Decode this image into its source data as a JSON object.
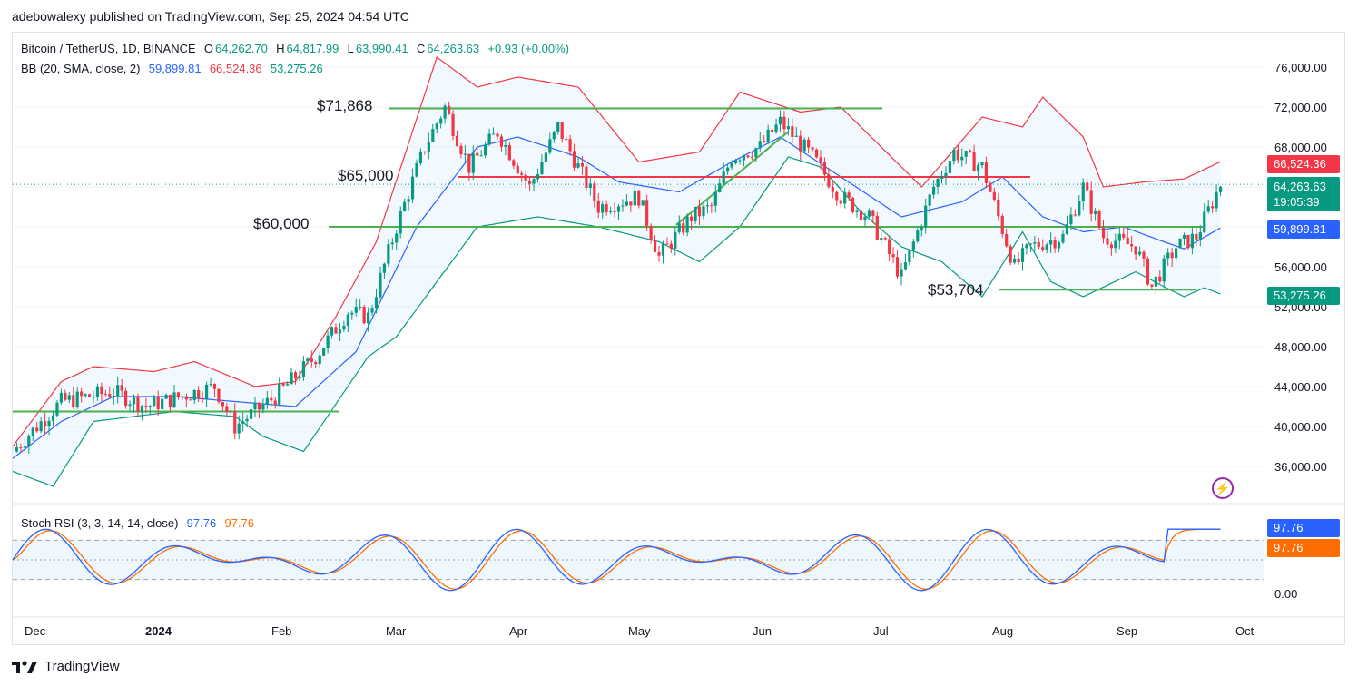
{
  "header": {
    "publisher": "adebowalexy published on TradingView.com, Sep 25, 2024 04:54 UTC"
  },
  "symbol": {
    "name": "Bitcoin / TetherUS, 1D, BINANCE",
    "open_label": "O",
    "open": "64,262.70",
    "high_label": "H",
    "high": "64,817.99",
    "low_label": "L",
    "low": "63,990.41",
    "close_label": "C",
    "close": "64,263.63",
    "change": "+0.93 (+0.00%)"
  },
  "bb": {
    "label": "BB (20, SMA, close, 2)",
    "basis": "59,899.81",
    "upper": "66,524.36",
    "lower": "53,275.26"
  },
  "stoch": {
    "label": "Stoch RSI (3, 3, 14, 14, close)",
    "k": "97.76",
    "d": "97.76"
  },
  "price_tags": {
    "upper": "66,524.36",
    "last": "64,263.63",
    "countdown": "19:05:39",
    "basis": "59,899.81",
    "lower": "53,275.26",
    "stoch_k": "97.76",
    "stoch_d": "97.76"
  },
  "annotations": {
    "a1": "$71,868",
    "a2": "$65,000",
    "a3": "$60,000",
    "a4": "$53,704"
  },
  "y_axis": [
    "76,000.00",
    "72,000.00",
    "68,000.00",
    "56,000.00",
    "52,000.00",
    "48,000.00",
    "44,000.00",
    "40,000.00",
    "36,000.00"
  ],
  "y_axis_stoch": "0.00",
  "x_axis": [
    "Dec",
    "2024",
    "Feb",
    "Mar",
    "Apr",
    "May",
    "Jun",
    "Jul",
    "Aug",
    "Sep",
    "Oct"
  ],
  "footer": {
    "brand": "TradingView"
  },
  "colors": {
    "up": "#089981",
    "down": "#f23645",
    "basis": "#2962ff",
    "upper": "#f23645",
    "lower": "#089981",
    "annot": "#4caf50",
    "stoch_k": "#2962ff",
    "stoch_d": "#ff6d00"
  },
  "chart_data": {
    "type": "candlestick",
    "x": [
      "Dec",
      "2024",
      "Feb",
      "Mar",
      "Apr",
      "May",
      "Jun",
      "Jul",
      "Aug",
      "Sep",
      "Oct"
    ],
    "anchors_price": [
      {
        "d": 0,
        "p": 37500
      },
      {
        "d": 12,
        "p": 42500
      },
      {
        "d": 25,
        "p": 43500
      },
      {
        "d": 33,
        "p": 42000
      },
      {
        "d": 50,
        "p": 44000
      },
      {
        "d": 55,
        "p": 40000
      },
      {
        "d": 65,
        "p": 43000
      },
      {
        "d": 75,
        "p": 47000
      },
      {
        "d": 83,
        "p": 51500
      },
      {
        "d": 88,
        "p": 51000
      },
      {
        "d": 95,
        "p": 60000
      },
      {
        "d": 102,
        "p": 68000
      },
      {
        "d": 107,
        "p": 72000
      },
      {
        "d": 113,
        "p": 66000
      },
      {
        "d": 120,
        "p": 69500
      },
      {
        "d": 128,
        "p": 64000
      },
      {
        "d": 135,
        "p": 70000
      },
      {
        "d": 140,
        "p": 66000
      },
      {
        "d": 145,
        "p": 62000
      },
      {
        "d": 155,
        "p": 63000
      },
      {
        "d": 160,
        "p": 57000
      },
      {
        "d": 168,
        "p": 61000
      },
      {
        "d": 173,
        "p": 62000
      },
      {
        "d": 178,
        "p": 67000
      },
      {
        "d": 185,
        "p": 68000
      },
      {
        "d": 190,
        "p": 70500
      },
      {
        "d": 198,
        "p": 67000
      },
      {
        "d": 205,
        "p": 63000
      },
      {
        "d": 212,
        "p": 61000
      },
      {
        "d": 220,
        "p": 55000
      },
      {
        "d": 228,
        "p": 64000
      },
      {
        "d": 233,
        "p": 67500
      },
      {
        "d": 240,
        "p": 66000
      },
      {
        "d": 248,
        "p": 56000
      },
      {
        "d": 252,
        "p": 58000
      },
      {
        "d": 260,
        "p": 59000
      },
      {
        "d": 265,
        "p": 64000
      },
      {
        "d": 270,
        "p": 59000
      },
      {
        "d": 278,
        "p": 58000
      },
      {
        "d": 282,
        "p": 54000
      },
      {
        "d": 288,
        "p": 58000
      },
      {
        "d": 293,
        "p": 59000
      },
      {
        "d": 299,
        "p": 64263
      }
    ],
    "upper_band": [
      {
        "d": 0,
        "p": 38000
      },
      {
        "d": 12,
        "p": 44500
      },
      {
        "d": 20,
        "p": 46000
      },
      {
        "d": 35,
        "p": 45500
      },
      {
        "d": 45,
        "p": 46500
      },
      {
        "d": 60,
        "p": 44000
      },
      {
        "d": 70,
        "p": 44500
      },
      {
        "d": 80,
        "p": 51000
      },
      {
        "d": 90,
        "p": 58500
      },
      {
        "d": 105,
        "p": 77000
      },
      {
        "d": 115,
        "p": 74000
      },
      {
        "d": 125,
        "p": 75000
      },
      {
        "d": 140,
        "p": 74000
      },
      {
        "d": 155,
        "p": 66500
      },
      {
        "d": 170,
        "p": 67500
      },
      {
        "d": 180,
        "p": 73500
      },
      {
        "d": 195,
        "p": 71500
      },
      {
        "d": 205,
        "p": 72000
      },
      {
        "d": 225,
        "p": 64000
      },
      {
        "d": 240,
        "p": 71000
      },
      {
        "d": 250,
        "p": 70000
      },
      {
        "d": 255,
        "p": 73000
      },
      {
        "d": 265,
        "p": 69000
      },
      {
        "d": 270,
        "p": 64000
      },
      {
        "d": 280,
        "p": 64500
      },
      {
        "d": 290,
        "p": 64800
      },
      {
        "d": 299,
        "p": 66524
      }
    ],
    "basis_line": [
      {
        "d": 0,
        "p": 36800
      },
      {
        "d": 12,
        "p": 40500
      },
      {
        "d": 25,
        "p": 43000
      },
      {
        "d": 40,
        "p": 43000
      },
      {
        "d": 55,
        "p": 42500
      },
      {
        "d": 70,
        "p": 42000
      },
      {
        "d": 85,
        "p": 47500
      },
      {
        "d": 100,
        "p": 60000
      },
      {
        "d": 115,
        "p": 68000
      },
      {
        "d": 125,
        "p": 69000
      },
      {
        "d": 140,
        "p": 67000
      },
      {
        "d": 150,
        "p": 64500
      },
      {
        "d": 165,
        "p": 63500
      },
      {
        "d": 178,
        "p": 66500
      },
      {
        "d": 190,
        "p": 69000
      },
      {
        "d": 205,
        "p": 65000
      },
      {
        "d": 220,
        "p": 61000
      },
      {
        "d": 235,
        "p": 62500
      },
      {
        "d": 245,
        "p": 65000
      },
      {
        "d": 255,
        "p": 61000
      },
      {
        "d": 265,
        "p": 59500
      },
      {
        "d": 275,
        "p": 60000
      },
      {
        "d": 285,
        "p": 58500
      },
      {
        "d": 290,
        "p": 57800
      },
      {
        "d": 299,
        "p": 59899
      }
    ],
    "lower_band": [
      {
        "d": 0,
        "p": 35500
      },
      {
        "d": 10,
        "p": 34000
      },
      {
        "d": 20,
        "p": 40500
      },
      {
        "d": 40,
        "p": 41500
      },
      {
        "d": 55,
        "p": 41000
      },
      {
        "d": 62,
        "p": 39000
      },
      {
        "d": 72,
        "p": 37500
      },
      {
        "d": 88,
        "p": 47000
      },
      {
        "d": 95,
        "p": 49000
      },
      {
        "d": 115,
        "p": 60000
      },
      {
        "d": 130,
        "p": 61000
      },
      {
        "d": 145,
        "p": 60000
      },
      {
        "d": 160,
        "p": 58500
      },
      {
        "d": 170,
        "p": 56500
      },
      {
        "d": 180,
        "p": 60000
      },
      {
        "d": 192,
        "p": 67000
      },
      {
        "d": 200,
        "p": 66000
      },
      {
        "d": 210,
        "p": 61500
      },
      {
        "d": 220,
        "p": 58000
      },
      {
        "d": 230,
        "p": 56500
      },
      {
        "d": 240,
        "p": 53000
      },
      {
        "d": 250,
        "p": 59500
      },
      {
        "d": 257,
        "p": 54500
      },
      {
        "d": 265,
        "p": 53000
      },
      {
        "d": 278,
        "p": 55500
      },
      {
        "d": 285,
        "p": 54000
      },
      {
        "d": 290,
        "p": 53000
      },
      {
        "d": 295,
        "p": 53900
      },
      {
        "d": 299,
        "p": 53275
      }
    ],
    "stoch_rsi_k_last": 97.76,
    "stoch_rsi_d_last": 97.76,
    "price_range": [
      32000,
      80000
    ],
    "levels": [
      71868,
      65000,
      60000,
      53704,
      41500
    ]
  }
}
